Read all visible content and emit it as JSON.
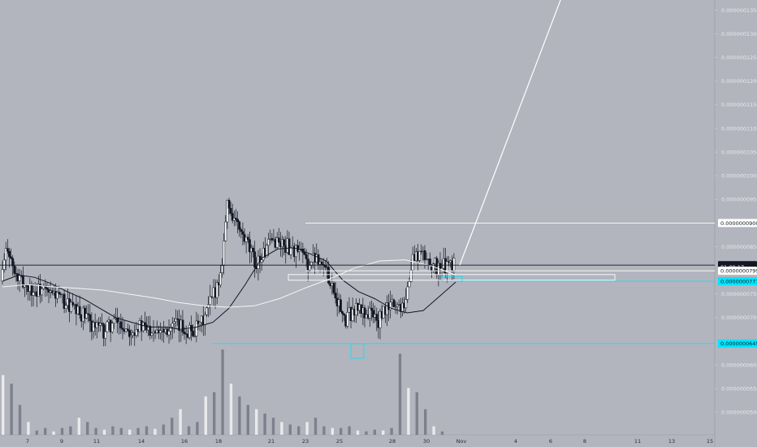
{
  "chart_data": {
    "type": "candlestick",
    "title": "",
    "ylim": [
      4.5e-08,
      1.37e-07
    ],
    "y_ticks": [
      "0.0000001350",
      "0.0000001300",
      "0.0000001250",
      "0.0000001200",
      "0.0000001150",
      "0.0000001100",
      "0.0000001050",
      "0.0000001000",
      "0.0000000950",
      "0.0000000850",
      "0.0000000750",
      "0.0000000700",
      "0.0000000600",
      "0.0000000550",
      "0.0000000500"
    ],
    "x_ticks": [
      "7",
      "9",
      "11",
      "14",
      "16",
      "18",
      "21",
      "23",
      "25",
      "28",
      "30",
      "Nov",
      "4",
      "6",
      "8",
      "11",
      "13",
      "15"
    ],
    "price_labels": [
      {
        "name": "resistance",
        "text": "0.0000000900",
        "value": 9e-08,
        "color": "#ffffff",
        "text_color": "#131722"
      },
      {
        "name": "last-price",
        "text": "0.0000000811",
        "value": 8.11e-08,
        "color": "#131722",
        "text_color": "#ffffff"
      },
      {
        "name": "countdown",
        "text": "01:09:17",
        "value": 8.07e-08,
        "color": "#131722",
        "text_color": "#ffffff"
      },
      {
        "name": "level-799",
        "text": "0.0000000799",
        "value": 7.99e-08,
        "color": "#ffffff",
        "text_color": "#131722"
      },
      {
        "name": "level-777",
        "text": "0.0000000777",
        "value": 7.77e-08,
        "color": "#00e5ff",
        "text_color": "#131722"
      },
      {
        "name": "support",
        "text": "0.0000000645",
        "value": 6.45e-08,
        "color": "#00e5ff",
        "text_color": "#131722"
      }
    ],
    "series": [
      {
        "name": "",
        "kind": "candles",
        "path": [
          7.77e-08,
          8.55e-08,
          7.9e-08,
          7.75e-08,
          7.65e-08,
          7.55e-08,
          7.6e-08,
          7.48e-08,
          7.5e-08,
          7.35e-08,
          7.25e-08,
          7.1e-08,
          7.05e-08,
          6.9e-08,
          6.8e-08,
          6.7e-08,
          6.85e-08,
          6.9e-08,
          6.8e-08,
          6.75e-08,
          6.82e-08,
          6.76e-08,
          6.78e-08,
          6.8e-08,
          6.78e-08,
          6.82e-08,
          6.8e-08,
          6.75e-08,
          6.72e-08,
          6.8e-08,
          7.1e-08,
          7.5e-08,
          7.9e-08,
          9.4e-08,
          9.1e-08,
          8.75e-08,
          8.5e-08,
          8.15e-08,
          8.3e-08,
          8.5e-08,
          8.65e-08,
          8.55e-08,
          8.5e-08,
          8.4e-08,
          8.3e-08,
          8.1e-08,
          8.35e-08,
          8.1e-08,
          7.8e-08,
          7.4e-08,
          6.9e-08,
          7.1e-08,
          7.2e-08,
          7.1e-08,
          7.1e-08,
          6.9e-08,
          7.15e-08,
          7.3e-08,
          7.25e-08,
          7.4e-08,
          8.25e-08,
          8.35e-08,
          8.25e-08,
          8.1e-08,
          8.05e-08,
          8.1e-08,
          8.11e-08
        ]
      },
      {
        "name": "",
        "kind": "ma-short",
        "path": [
          7.77e-08,
          7.9e-08,
          7.85e-08,
          7.72e-08,
          7.55e-08,
          7.4e-08,
          7.2e-08,
          7e-08,
          6.9e-08,
          6.8e-08,
          6.8e-08,
          6.75e-08,
          6.8e-08,
          6.9e-08,
          7.2e-08,
          7.7e-08,
          8.25e-08,
          8.45e-08,
          8.48e-08,
          8.35e-08,
          8.2e-08,
          7.8e-08,
          7.55e-08,
          7.4e-08,
          7.2e-08,
          7.1e-08,
          7.15e-08,
          7.45e-08,
          7.75e-08
        ]
      },
      {
        "name": "",
        "kind": "ma-long",
        "path": [
          7.65e-08,
          7.7e-08,
          7.65e-08,
          7.62e-08,
          7.58e-08,
          7.5e-08,
          7.42e-08,
          7.32e-08,
          7.25e-08,
          7.22e-08,
          7.25e-08,
          7.4e-08,
          7.62e-08,
          7.82e-08,
          8.05e-08,
          8.2e-08,
          8.22e-08,
          8.1e-08,
          7.9e-08
        ]
      },
      {
        "name": "",
        "kind": "volume",
        "path": [
          0.7,
          0.6,
          0.35,
          0.15,
          0.05,
          0.08,
          0.04,
          0.08,
          0.1,
          0.2,
          0.15,
          0.08,
          0.06,
          0.1,
          0.08,
          0.06,
          0.08,
          0.1,
          0.07,
          0.12,
          0.2,
          0.3,
          0.1,
          0.15,
          0.45,
          0.5,
          1.0,
          0.6,
          0.45,
          0.35,
          0.3,
          0.25,
          0.2,
          0.15,
          0.12,
          0.1,
          0.15,
          0.2,
          0.1,
          0.08,
          0.08,
          0.1,
          0.05,
          0.04,
          0.06,
          0.05,
          0.08,
          0.95,
          0.55,
          0.5,
          0.3,
          0.1,
          0.04
        ]
      }
    ]
  }
}
